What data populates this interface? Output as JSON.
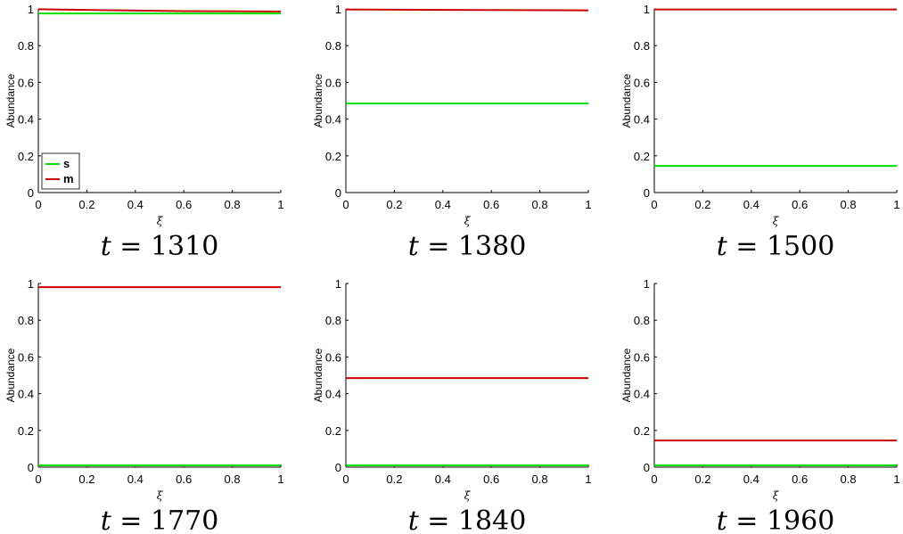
{
  "chart_data": [
    {
      "type": "line",
      "title": "t = 1310",
      "xlabel": "ξ",
      "ylabel": "Abundance",
      "xlim": [
        0,
        1
      ],
      "ylim": [
        0,
        1
      ],
      "xticks": [
        "0",
        "0.2",
        "0.4",
        "0.6",
        "0.8",
        "1"
      ],
      "yticks": [
        "0",
        "0.2",
        "0.4",
        "0.6",
        "0.8",
        "1"
      ],
      "legend": "bottom-left",
      "series": [
        {
          "name": "s",
          "color": "#00dd00",
          "x": [
            0,
            1
          ],
          "y": [
            0.975,
            0.975
          ]
        },
        {
          "name": "m",
          "color": "#cc0000",
          "x": [
            0,
            0.3,
            0.6,
            1
          ],
          "y": [
            0.998,
            0.993,
            0.988,
            0.986
          ]
        }
      ]
    },
    {
      "type": "line",
      "title": "t = 1380",
      "xlabel": "ξ",
      "ylabel": "Abundance",
      "xlim": [
        0,
        1
      ],
      "ylim": [
        0,
        1
      ],
      "xticks": [
        "0",
        "0.2",
        "0.4",
        "0.6",
        "0.8",
        "1"
      ],
      "yticks": [
        "0",
        "0.2",
        "0.4",
        "0.6",
        "0.8",
        "1"
      ],
      "series": [
        {
          "color": "#00dd00",
          "x": [
            0,
            1
          ],
          "y": [
            0.485,
            0.485
          ]
        },
        {
          "color": "#cc0000",
          "x": [
            0,
            1
          ],
          "y": [
            0.997,
            0.992
          ]
        }
      ]
    },
    {
      "type": "line",
      "title": "t = 1500",
      "xlabel": "ξ",
      "ylabel": "Abundance",
      "xlim": [
        0,
        1
      ],
      "ylim": [
        0,
        1
      ],
      "xticks": [
        "0",
        "0.2",
        "0.4",
        "0.6",
        "0.8",
        "1"
      ],
      "yticks": [
        "0",
        "0.2",
        "0.4",
        "0.6",
        "0.8",
        "1"
      ],
      "series": [
        {
          "color": "#00dd00",
          "x": [
            0,
            1
          ],
          "y": [
            0.145,
            0.145
          ]
        },
        {
          "color": "#cc0000",
          "x": [
            0,
            1
          ],
          "y": [
            0.997,
            0.997
          ]
        }
      ]
    },
    {
      "type": "line",
      "title": "t = 1770",
      "xlabel": "ξ",
      "ylabel": "Abundance",
      "xlim": [
        0,
        1
      ],
      "ylim": [
        0,
        1
      ],
      "xticks": [
        "0",
        "0.2",
        "0.4",
        "0.6",
        "0.8",
        "1"
      ],
      "yticks": [
        "0",
        "0.2",
        "0.4",
        "0.6",
        "0.8",
        "1"
      ],
      "series": [
        {
          "color": "#00dd00",
          "x": [
            0,
            1
          ],
          "y": [
            0.01,
            0.01
          ]
        },
        {
          "color": "#cc0000",
          "x": [
            0,
            1
          ],
          "y": [
            0.98,
            0.98
          ]
        }
      ]
    },
    {
      "type": "line",
      "title": "t = 1840",
      "xlabel": "ξ",
      "ylabel": "Abundance",
      "xlim": [
        0,
        1
      ],
      "ylim": [
        0,
        1
      ],
      "xticks": [
        "0",
        "0.2",
        "0.4",
        "0.6",
        "0.8",
        "1"
      ],
      "yticks": [
        "0",
        "0.2",
        "0.4",
        "0.6",
        "0.8",
        "1"
      ],
      "series": [
        {
          "color": "#00dd00",
          "x": [
            0,
            1
          ],
          "y": [
            0.01,
            0.01
          ]
        },
        {
          "color": "#cc0000",
          "x": [
            0,
            1
          ],
          "y": [
            0.485,
            0.485
          ]
        }
      ]
    },
    {
      "type": "line",
      "title": "t = 1960",
      "xlabel": "ξ",
      "ylabel": "Abundance",
      "xlim": [
        0,
        1
      ],
      "ylim": [
        0,
        1
      ],
      "xticks": [
        "0",
        "0.2",
        "0.4",
        "0.6",
        "0.8",
        "1"
      ],
      "yticks": [
        "0",
        "0.2",
        "0.4",
        "0.6",
        "0.8",
        "1"
      ],
      "series": [
        {
          "color": "#00dd00",
          "x": [
            0,
            1
          ],
          "y": [
            0.01,
            0.01
          ]
        },
        {
          "color": "#cc0000",
          "x": [
            0,
            1
          ],
          "y": [
            0.145,
            0.145
          ]
        }
      ]
    }
  ]
}
